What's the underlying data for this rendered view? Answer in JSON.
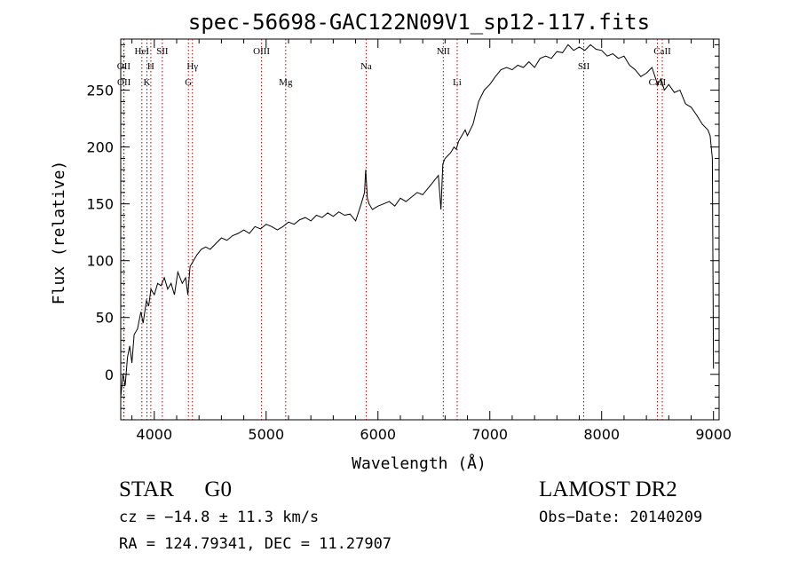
{
  "chart_data": {
    "type": "line",
    "title": "spec-56698-GAC122N09V1_sp12-117.fits",
    "xlabel": "Wavelength (Å)",
    "ylabel": "Flux (relative)",
    "xlim": [
      3700,
      9050
    ],
    "ylim": [
      -40,
      295
    ],
    "x_ticks": [
      4000,
      5000,
      6000,
      7000,
      8000,
      9000
    ],
    "y_ticks": [
      0,
      50,
      100,
      150,
      200,
      250
    ],
    "grid": false,
    "series": [
      {
        "x": [
          3700,
          3720,
          3740,
          3760,
          3780,
          3800,
          3820,
          3850,
          3880,
          3900,
          3930,
          3950,
          3970,
          4000,
          4030,
          4060,
          4090,
          4120,
          4150,
          4180,
          4210,
          4250,
          4280,
          4300,
          4320,
          4350,
          4380,
          4420,
          4460,
          4500,
          4550,
          4600,
          4650,
          4700,
          4750,
          4800,
          4850,
          4900,
          4950,
          5000,
          5050,
          5100,
          5150,
          5200,
          5250,
          5300,
          5350,
          5400,
          5450,
          5500,
          5550,
          5600,
          5650,
          5700,
          5750,
          5800,
          5850,
          5880,
          5890,
          5896,
          5905,
          5920,
          5950,
          6000,
          6050,
          6100,
          6150,
          6200,
          6250,
          6300,
          6350,
          6400,
          6450,
          6500,
          6540,
          6563,
          6580,
          6600,
          6620,
          6650,
          6680,
          6700,
          6720,
          6750,
          6780,
          6800,
          6850,
          6900,
          6950,
          7000,
          7050,
          7100,
          7150,
          7200,
          7250,
          7300,
          7350,
          7400,
          7450,
          7500,
          7550,
          7600,
          7650,
          7700,
          7750,
          7800,
          7850,
          7900,
          7950,
          8000,
          8050,
          8100,
          8150,
          8200,
          8250,
          8300,
          8350,
          8400,
          8450,
          8500,
          8530,
          8560,
          8600,
          8650,
          8700,
          8750,
          8800,
          8850,
          8900,
          8950,
          8970,
          8990,
          9000
        ],
        "y": [
          -20,
          0,
          -10,
          15,
          25,
          10,
          35,
          40,
          55,
          45,
          65,
          60,
          75,
          70,
          80,
          78,
          85,
          75,
          80,
          70,
          90,
          80,
          85,
          70,
          95,
          100,
          105,
          110,
          112,
          110,
          115,
          120,
          118,
          122,
          124,
          127,
          124,
          130,
          128,
          132,
          130,
          127,
          130,
          134,
          132,
          136,
          138,
          135,
          140,
          138,
          142,
          139,
          143,
          140,
          141,
          135,
          150,
          160,
          180,
          170,
          155,
          150,
          145,
          148,
          150,
          152,
          148,
          155,
          152,
          156,
          160,
          158,
          164,
          170,
          175,
          145,
          185,
          190,
          192,
          195,
          200,
          198,
          205,
          210,
          215,
          210,
          220,
          240,
          250,
          255,
          262,
          268,
          270,
          268,
          272,
          270,
          275,
          270,
          278,
          280,
          278,
          284,
          283,
          290,
          285,
          288,
          285,
          290,
          286,
          285,
          280,
          282,
          278,
          280,
          272,
          268,
          262,
          265,
          270,
          255,
          260,
          250,
          255,
          248,
          250,
          238,
          235,
          228,
          220,
          215,
          210,
          190,
          5
        ]
      }
    ],
    "line_markers": [
      {
        "label": "OII",
        "x": 3727,
        "row": 1
      },
      {
        "label": "OII",
        "x": 3729,
        "row": 2
      },
      {
        "label": "HeI",
        "x": 3889,
        "row": 0
      },
      {
        "label": "K",
        "x": 3934,
        "row": 2
      },
      {
        "label": "H",
        "x": 3969,
        "row": 1
      },
      {
        "label": "SII",
        "x": 4072,
        "row": 0
      },
      {
        "label": "Hγ",
        "x": 4341,
        "row": 1
      },
      {
        "label": "G",
        "x": 4305,
        "row": 2
      },
      {
        "label": "OIII",
        "x": 4959,
        "row": 0
      },
      {
        "label": "Mg",
        "x": 5175,
        "row": 2
      },
      {
        "label": "Na",
        "x": 5894,
        "row": 1
      },
      {
        "label": "NII",
        "x": 6584,
        "row": 0
      },
      {
        "label": "Li",
        "x": 6708,
        "row": 2
      },
      {
        "label": "SII",
        "x": 7840,
        "row": 1
      },
      {
        "label": "CaII",
        "x": 8542,
        "row": 0
      },
      {
        "label": "CaII",
        "x": 8498,
        "row": 2
      }
    ]
  },
  "info": {
    "class": "STAR",
    "subclass": "G0",
    "survey": "LAMOST DR2",
    "cz": "cz = −14.8 ± 11.3 km/s",
    "obs_date": "Obs−Date: 20140209",
    "radec": "RA = 124.79341, DEC =  11.27907"
  }
}
